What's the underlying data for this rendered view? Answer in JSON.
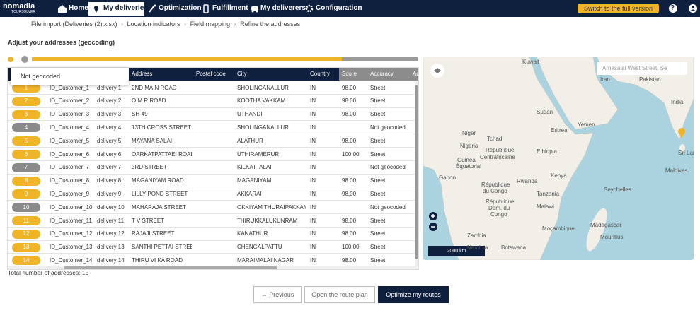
{
  "nav": {
    "logo": "nomadia",
    "logo_sub": "TOURSOLVER",
    "items": [
      "Home",
      "My deliveries",
      "Optimization",
      "Fulfillment",
      "My deliverers",
      "Configuration"
    ],
    "switch_button": "Switch to the full version",
    "help": "?"
  },
  "breadcrumb": [
    "File import (Deliveries (2).xlsx)",
    "Location indicators",
    "Field mapping",
    "Refine the addresses"
  ],
  "title": "Adjust your addresses (geocoding)",
  "tooltip": "Not geocoded",
  "table": {
    "columns": [
      "N",
      null,
      null,
      "Address",
      "Postal code",
      "City",
      "Country",
      "Score",
      "Accuracy",
      "Ad"
    ],
    "rows": [
      [
        "1",
        "ID_Customer_1",
        "delivery 1",
        "2ND MAIN ROAD",
        null,
        "SHOLINGANALLUR",
        "IN",
        "98.00",
        "Street"
      ],
      [
        "2",
        "ID_Customer_2",
        "delivery 2",
        "O M R ROAD",
        null,
        "KOOTHA VAKKAM",
        "IN",
        "98.00",
        "Street"
      ],
      [
        "3",
        "ID_Customer_3",
        "delivery 3",
        "SH-49",
        null,
        "UTHANDI",
        "IN",
        "98.00",
        "Street"
      ],
      [
        "4",
        "ID_Customer_4",
        "delivery 4",
        "13TH CROSS STREET",
        null,
        "SHOLINGANALLUR",
        "IN",
        null,
        "Not geocoded"
      ],
      [
        "5",
        "ID_Customer_5",
        "delivery 5",
        "MAYANA SALAI",
        null,
        "ALATHUR",
        "IN",
        "98.00",
        "Street"
      ],
      [
        "6",
        "ID_Customer_6",
        "delivery 6",
        "OARKATPATTAEI ROAD",
        null,
        "UTHIRAMERUR",
        "IN",
        "100.00",
        "Street"
      ],
      [
        "7",
        "ID_Customer_7",
        "delivery 7",
        "3RD STREET",
        null,
        "KILKATTALAI",
        "IN",
        null,
        "Not geocoded"
      ],
      [
        "8",
        "ID_Customer_8",
        "delivery 8",
        "MAGANIYAM ROAD",
        null,
        "MAGANIYAM",
        "IN",
        "98.00",
        "Street"
      ],
      [
        "9",
        "ID_Customer_9",
        "delivery 9",
        "LILLY POND STREET",
        null,
        "AKKARAI",
        "IN",
        "98.00",
        "Street"
      ],
      [
        "10",
        "ID_Customer_10",
        "delivery 10",
        "MAHARAJA STREET",
        null,
        "OKKIYAM THURAIPAKKAM",
        "IN",
        null,
        "Not geocoded"
      ],
      [
        "11",
        "ID_Customer_11",
        "delivery 11",
        "T V STREET",
        null,
        "THIRUKKALUKUNRAM",
        "IN",
        "98.00",
        "Street"
      ],
      [
        "12",
        "ID_Customer_12",
        "delivery 12",
        "RAJAJI STREET",
        null,
        "KANATHUR",
        "IN",
        "98.00",
        "Street"
      ],
      [
        "13",
        "ID_Customer_13",
        "delivery 13",
        "SANTHI PETTAI STREET",
        null,
        "CHENGALPATTU",
        "IN",
        "100.00",
        "Street"
      ],
      [
        "14",
        "ID_Customer_14",
        "delivery 14",
        "THIRU VI KA ROAD",
        null,
        "MARAIMALAI NAGAR",
        "IN",
        "98.00",
        "Street"
      ]
    ]
  },
  "footer_total": "Total number of addresses: 15",
  "map": {
    "search": "Arnasalai West Street, Se",
    "scale": "2000 km",
    "labels": [
      "Kuwait",
      "Iran",
      "Pakistan",
      "India",
      "Sudan",
      "Yemen",
      "Eritrea",
      "Niger",
      "Tchad",
      "Nigeria",
      "République",
      "Centrafricaine",
      "Ethiopia",
      "Guinea",
      "Équatorial",
      "Kenya",
      "Gabon",
      "République",
      "du Congo",
      "Rwanda",
      "Seychelles",
      "Tanzania",
      "Maldives",
      "République",
      "Dém. du",
      "Congo",
      "Malawi",
      "Madagascar",
      "Moçambique",
      "Zambia",
      "Mauritius",
      "Namibia",
      "Botswana",
      "Sri Lanka"
    ]
  },
  "buttons": {
    "previous": "Previous",
    "open_route_plan": "Open the route plan",
    "optimize": "Optimize my routes"
  }
}
